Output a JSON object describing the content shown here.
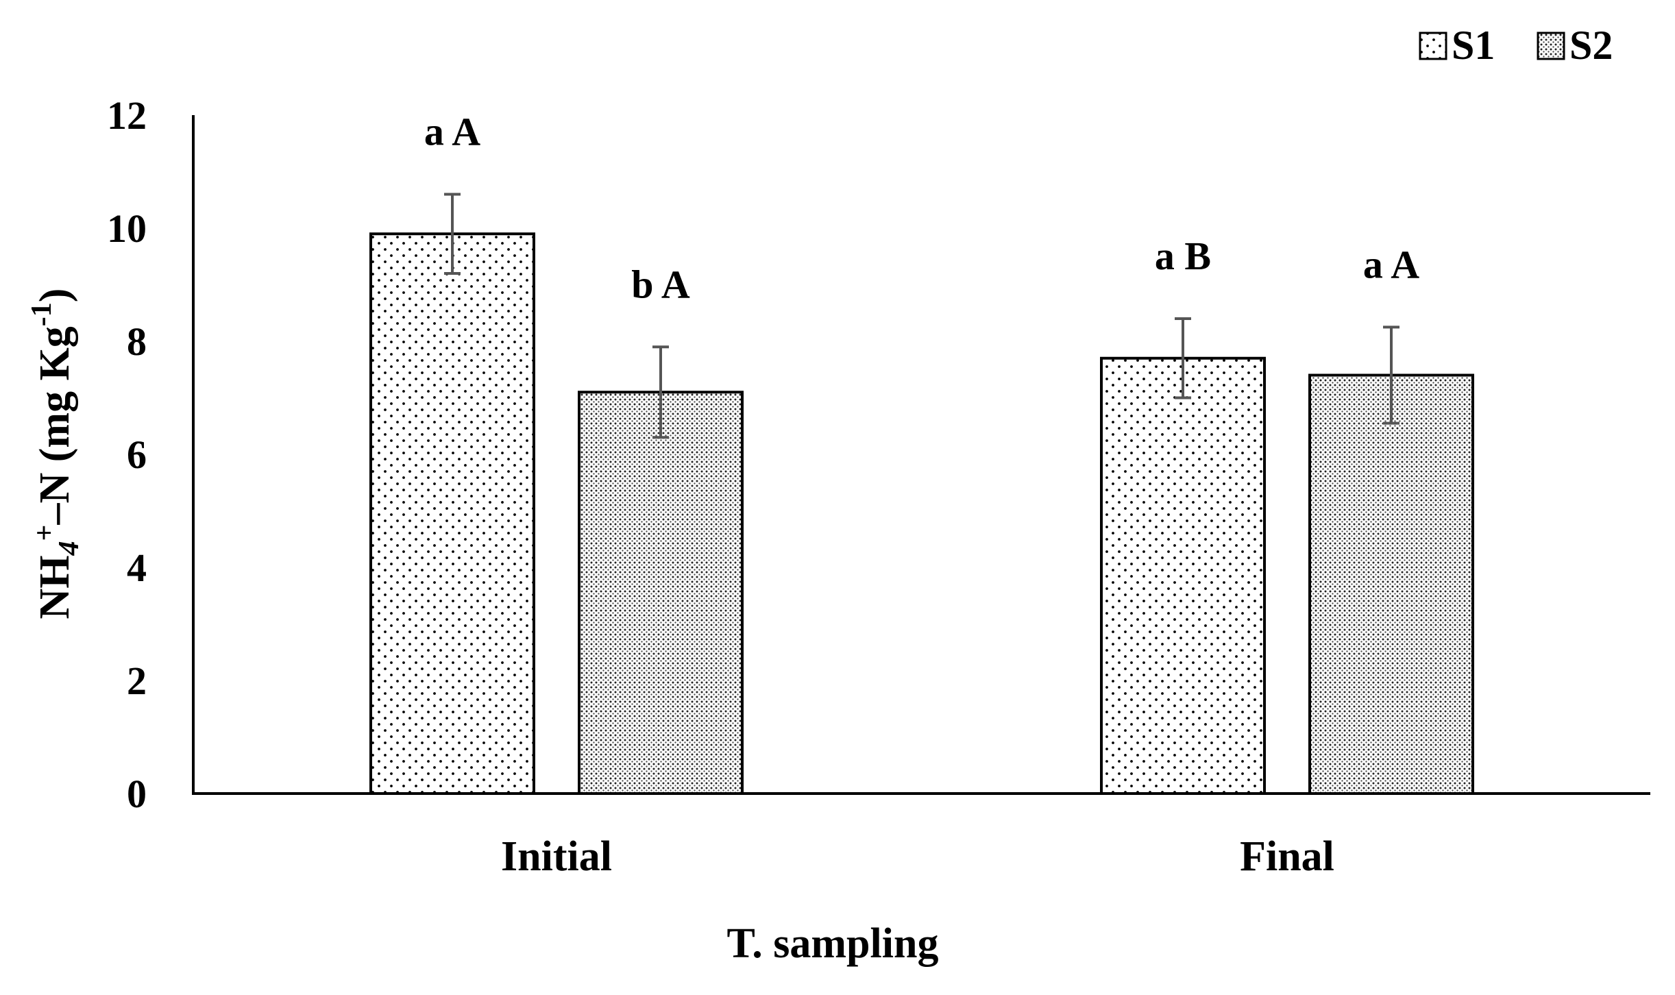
{
  "chart_data": {
    "type": "bar",
    "categories": [
      "Initial",
      "Final"
    ],
    "series": [
      {
        "name": "S1",
        "values": [
          9.9,
          7.7
        ],
        "errors": [
          0.7,
          0.7
        ],
        "significance": [
          "a A",
          "a B"
        ]
      },
      {
        "name": "S2",
        "values": [
          7.1,
          7.4
        ],
        "errors": [
          0.8,
          0.85
        ],
        "significance": [
          "b A",
          "a A"
        ]
      }
    ],
    "xlabel": "T. sampling",
    "ylabel": {
      "base": "NH",
      "sub": "4",
      "sup": "+",
      "mid": "–N (mg Kg",
      "sup2": "-1",
      "end": ")"
    },
    "ylim": [
      0,
      12
    ],
    "yticks": [
      "0",
      "2",
      "4",
      "6",
      "8",
      "10",
      "12"
    ],
    "grid": false,
    "legend_position": "top-right",
    "colors": {
      "bar_fill": "#ffffff",
      "stroke": "#000000",
      "error_bar": "#555555"
    }
  }
}
